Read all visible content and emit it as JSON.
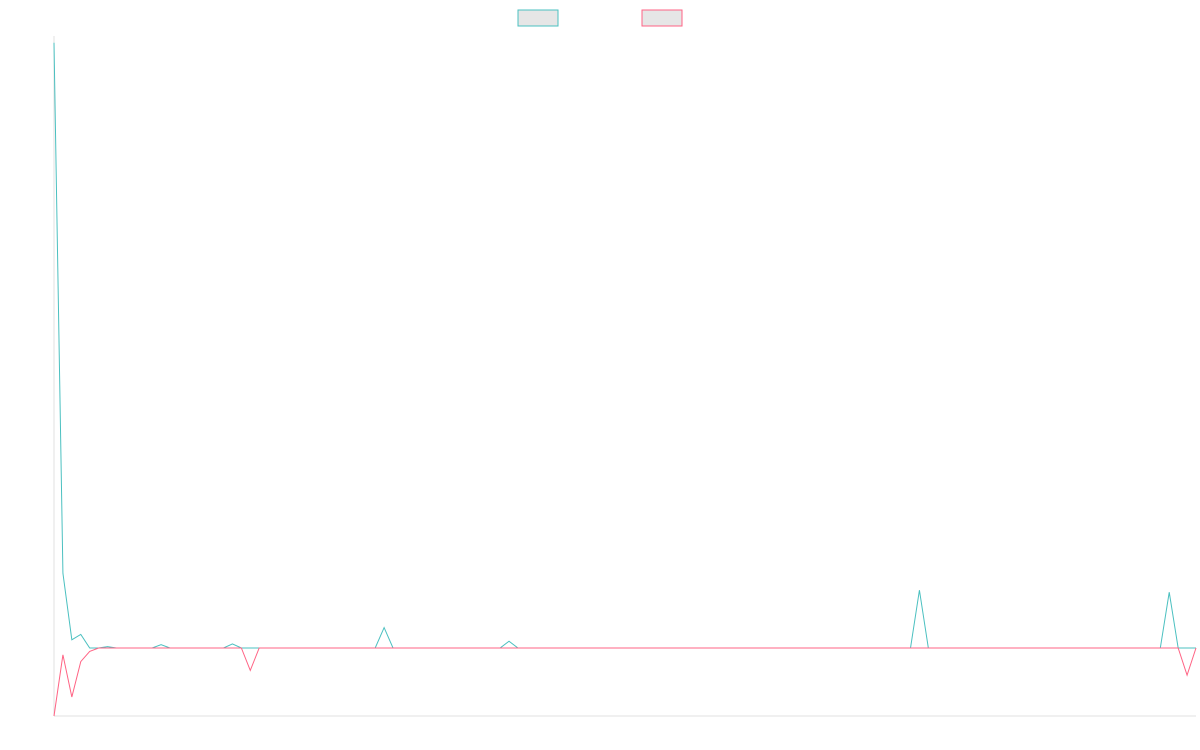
{
  "chart_data": {
    "type": "line",
    "title": "",
    "xlabel": "",
    "ylabel": "",
    "grid": false,
    "legend_placement": "top-center",
    "ylim": [
      -100,
      900
    ],
    "x": [
      0,
      1,
      2,
      3,
      4,
      5,
      6,
      7,
      8,
      9,
      10,
      11,
      12,
      13,
      14,
      15,
      16,
      17,
      18,
      19,
      20,
      21,
      22,
      23,
      24,
      25,
      26,
      27,
      28,
      29,
      30,
      31,
      32,
      33,
      34,
      35,
      36,
      37,
      38,
      39,
      40,
      41,
      42,
      43,
      44,
      45,
      46,
      47,
      48,
      49,
      50,
      51,
      52,
      53,
      54,
      55,
      56,
      57,
      58,
      59,
      60,
      61,
      62,
      63,
      64,
      65,
      66,
      67,
      68,
      69,
      70,
      71,
      72,
      73,
      74,
      75,
      76,
      77,
      78,
      79,
      80,
      81,
      82,
      83,
      84,
      85,
      86,
      87,
      88,
      89,
      90,
      91,
      92,
      93,
      94,
      95,
      96,
      97,
      98,
      99,
      100,
      101,
      102,
      103,
      104,
      105,
      106,
      107,
      108,
      109,
      110,
      111,
      112,
      113,
      114,
      115,
      116,
      117,
      118,
      119,
      120,
      121,
      122,
      123,
      124,
      125,
      126,
      127,
      128
    ],
    "series": [
      {
        "color": "#4bc0c0",
        "values": [
          890,
          110,
          12,
          20,
          0,
          0,
          2,
          0,
          0,
          0,
          0,
          0,
          5,
          0,
          0,
          0,
          0,
          0,
          0,
          0,
          6,
          0,
          0,
          0,
          0,
          0,
          0,
          0,
          0,
          0,
          0,
          0,
          0,
          0,
          0,
          0,
          0,
          30,
          0,
          0,
          0,
          0,
          0,
          0,
          0,
          0,
          0,
          0,
          0,
          0,
          0,
          10,
          0,
          0,
          0,
          0,
          0,
          0,
          0,
          0,
          0,
          0,
          0,
          0,
          0,
          0,
          0,
          0,
          0,
          0,
          0,
          0,
          0,
          0,
          0,
          0,
          0,
          0,
          0,
          0,
          0,
          0,
          0,
          0,
          0,
          0,
          0,
          0,
          0,
          0,
          0,
          0,
          0,
          0,
          0,
          0,
          0,
          85,
          0,
          0,
          0,
          0,
          0,
          0,
          0,
          0,
          0,
          0,
          0,
          0,
          0,
          0,
          0,
          0,
          0,
          0,
          0,
          0,
          0,
          0,
          0,
          0,
          0,
          0,
          0,
          82,
          0,
          0,
          0
        ]
      },
      {
        "color": "#ff6384",
        "values": [
          -100,
          -10,
          -72,
          -20,
          -5,
          0,
          0,
          0,
          0,
          0,
          0,
          0,
          0,
          0,
          0,
          0,
          0,
          0,
          0,
          0,
          0,
          0,
          -33,
          0,
          0,
          0,
          0,
          0,
          0,
          0,
          0,
          0,
          0,
          0,
          0,
          0,
          0,
          0,
          0,
          0,
          0,
          0,
          0,
          0,
          0,
          0,
          0,
          0,
          0,
          0,
          0,
          0,
          0,
          0,
          0,
          0,
          0,
          0,
          0,
          0,
          0,
          0,
          0,
          0,
          0,
          0,
          0,
          0,
          0,
          0,
          0,
          0,
          0,
          0,
          0,
          0,
          0,
          0,
          0,
          0,
          0,
          0,
          0,
          0,
          0,
          0,
          0,
          0,
          0,
          0,
          0,
          0,
          0,
          0,
          0,
          0,
          0,
          0,
          0,
          0,
          0,
          0,
          0,
          0,
          0,
          0,
          0,
          0,
          0,
          0,
          0,
          0,
          0,
          0,
          0,
          0,
          0,
          0,
          0,
          0,
          0,
          0,
          0,
          0,
          0,
          0,
          0,
          -40,
          0
        ]
      }
    ]
  }
}
